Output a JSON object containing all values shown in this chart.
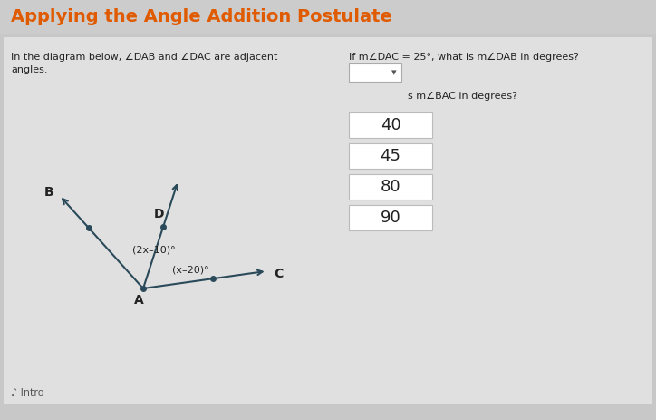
{
  "title": "Applying the Angle Addition Postulate",
  "title_color": "#e05a00",
  "bg_color": "#c8c8c8",
  "content_bg_color": "#e0e0e0",
  "title_bg_color": "#cccccc",
  "left_text_line1": "In the diagram below, ∠DAB and ∠DAC are adjacent",
  "left_text_line2": "angles.",
  "right_text": "If m∠DAC = 25°, what is m∠DAB in degrees?",
  "right_subtext": "s m∠BAC in degrees?",
  "choices": [
    "40",
    "45",
    "80",
    "90"
  ],
  "label_B": "B",
  "label_D": "D",
  "label_C": "C",
  "label_A": "A",
  "angle_label_BAD": "(2x–10)°",
  "angle_label_DAC": "(x–20)°",
  "arrow_color": "#2a4a5a",
  "dot_color": "#2a4a5a"
}
